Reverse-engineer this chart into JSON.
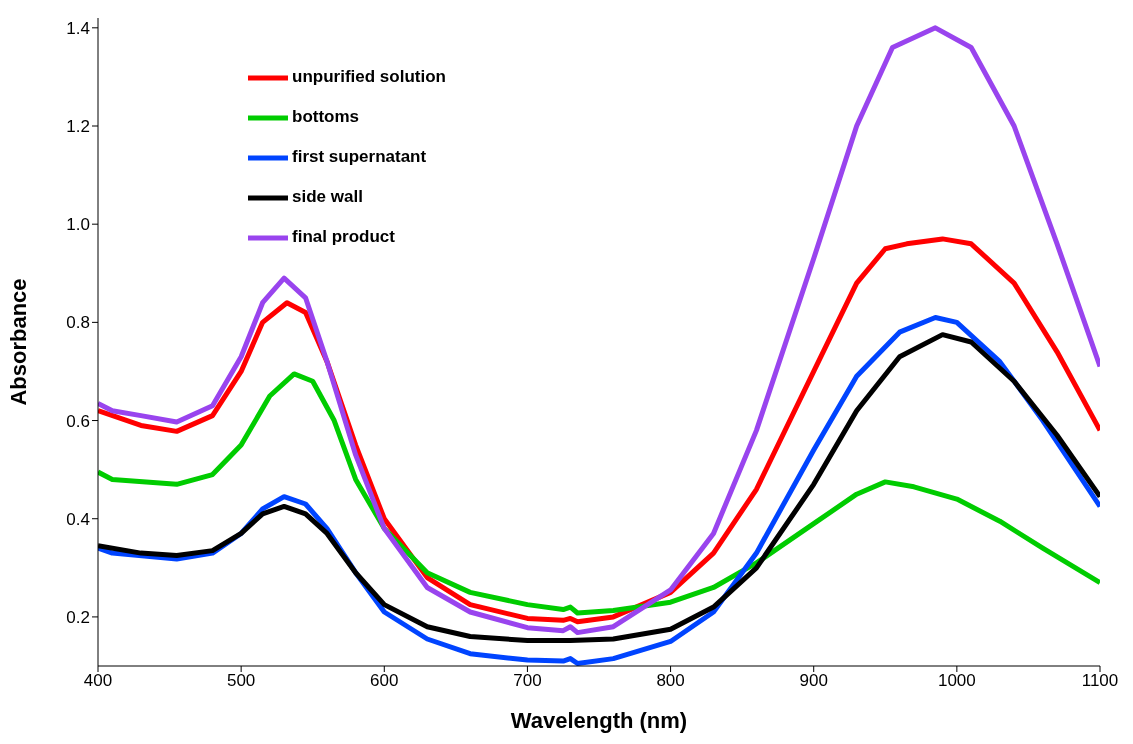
{
  "chart_data": {
    "type": "line",
    "xlabel": "Wavelength (nm)",
    "ylabel": "Absorbance",
    "xlim": [
      400,
      1100
    ],
    "xticks": [
      400,
      500,
      600,
      700,
      800,
      900,
      1000,
      1100
    ],
    "ylim": [
      0.1,
      1.42
    ],
    "yticks": [
      {
        "value": 0.2,
        "label": "0.2"
      },
      {
        "value": 0.4,
        "label": "0.4"
      },
      {
        "value": 0.6,
        "label": "0.6"
      },
      {
        "value": 0.8,
        "label": "0.8"
      },
      {
        "value": 1.0,
        "label": "1.0"
      },
      {
        "value": 1.2,
        "label": "1.2"
      },
      {
        "value": 1.4,
        "label": "1.4"
      }
    ],
    "grid": false,
    "legend": "top left",
    "marker": "none",
    "line_style": "solid",
    "series": [
      {
        "name": "unpurified solution",
        "color": "#ff0000",
        "x": [
          400,
          430,
          455,
          480,
          500,
          515,
          532,
          545,
          560,
          580,
          600,
          630,
          660,
          700,
          725,
          730,
          735,
          760,
          800,
          830,
          860,
          900,
          930,
          950,
          965,
          990,
          1010,
          1040,
          1070,
          1100
        ],
        "values": [
          0.62,
          0.59,
          0.578,
          0.61,
          0.7,
          0.8,
          0.84,
          0.82,
          0.72,
          0.55,
          0.4,
          0.28,
          0.225,
          0.197,
          0.193,
          0.197,
          0.19,
          0.2,
          0.25,
          0.33,
          0.46,
          0.7,
          0.88,
          0.95,
          0.96,
          0.97,
          0.96,
          0.88,
          0.74,
          0.58
        ]
      },
      {
        "name": "bottoms",
        "color": "#00cc00",
        "x": [
          400,
          410,
          455,
          480,
          500,
          520,
          537,
          550,
          565,
          580,
          600,
          630,
          660,
          700,
          725,
          730,
          735,
          760,
          800,
          830,
          860,
          900,
          930,
          950,
          970,
          1000,
          1030,
          1060,
          1100
        ],
        "values": [
          0.495,
          0.48,
          0.47,
          0.49,
          0.55,
          0.65,
          0.695,
          0.68,
          0.6,
          0.48,
          0.38,
          0.29,
          0.25,
          0.225,
          0.215,
          0.22,
          0.208,
          0.213,
          0.23,
          0.26,
          0.31,
          0.39,
          0.45,
          0.475,
          0.465,
          0.44,
          0.395,
          0.34,
          0.27
        ]
      },
      {
        "name": "first supernatant",
        "color": "#0044ff",
        "x": [
          400,
          410,
          455,
          480,
          500,
          515,
          530,
          545,
          560,
          580,
          600,
          630,
          660,
          700,
          725,
          730,
          735,
          760,
          800,
          830,
          860,
          900,
          930,
          960,
          985,
          1000,
          1030,
          1060,
          1100
        ],
        "values": [
          0.34,
          0.33,
          0.318,
          0.33,
          0.37,
          0.42,
          0.445,
          0.43,
          0.38,
          0.29,
          0.21,
          0.155,
          0.125,
          0.112,
          0.11,
          0.115,
          0.105,
          0.115,
          0.15,
          0.21,
          0.33,
          0.54,
          0.69,
          0.78,
          0.81,
          0.8,
          0.72,
          0.6,
          0.425
        ]
      },
      {
        "name": "side wall",
        "color": "#000000",
        "x": [
          400,
          430,
          455,
          480,
          500,
          515,
          530,
          545,
          560,
          580,
          600,
          630,
          660,
          700,
          730,
          760,
          800,
          830,
          860,
          900,
          930,
          960,
          990,
          1010,
          1040,
          1070,
          1100
        ],
        "values": [
          0.345,
          0.33,
          0.325,
          0.335,
          0.37,
          0.41,
          0.425,
          0.41,
          0.37,
          0.29,
          0.225,
          0.18,
          0.16,
          0.152,
          0.152,
          0.155,
          0.175,
          0.22,
          0.3,
          0.47,
          0.62,
          0.73,
          0.775,
          0.76,
          0.68,
          0.57,
          0.445
        ]
      },
      {
        "name": "final product",
        "color": "#9944ee",
        "x": [
          400,
          410,
          430,
          455,
          480,
          500,
          515,
          530,
          545,
          560,
          580,
          600,
          630,
          660,
          700,
          725,
          730,
          735,
          760,
          800,
          830,
          860,
          900,
          930,
          955,
          985,
          1010,
          1040,
          1070,
          1100
        ],
        "values": [
          0.635,
          0.62,
          0.61,
          0.597,
          0.63,
          0.73,
          0.84,
          0.89,
          0.85,
          0.72,
          0.53,
          0.38,
          0.26,
          0.21,
          0.178,
          0.172,
          0.18,
          0.168,
          0.18,
          0.255,
          0.37,
          0.58,
          0.93,
          1.2,
          1.36,
          1.4,
          1.36,
          1.2,
          0.96,
          0.71
        ]
      }
    ]
  }
}
